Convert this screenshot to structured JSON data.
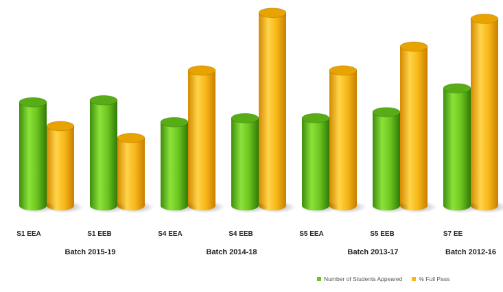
{
  "chart_data": {
    "type": "bar",
    "style": "3d-cylinder",
    "title": "",
    "xlabel": "",
    "ylabel": "",
    "ylim": [
      0,
      100
    ],
    "grid": false,
    "legend_position": "bottom-right",
    "categories": [
      "S1 EEA",
      "S1 EEB",
      "S4 EEA",
      "S4 EEB",
      "S5 EEA",
      "S5 EEB",
      "S7 EE"
    ],
    "groups": [
      {
        "label": "Batch 2015-19",
        "categories": [
          "S1 EEA",
          "S1 EEB"
        ]
      },
      {
        "label": "Batch 2014-18",
        "categories": [
          "S4 EEA",
          "S4 EEB"
        ]
      },
      {
        "label": "Batch 2013-17",
        "categories": [
          "S5 EEA",
          "S5 EEB"
        ]
      },
      {
        "label": "Batch 2012-16",
        "categories": [
          "S7 EE"
        ]
      }
    ],
    "series": [
      {
        "name": "Number of Students Appeared",
        "color": "#6cc41e",
        "values": [
          52,
          53,
          42,
          44,
          44,
          47,
          59
        ]
      },
      {
        "name": "% Full Pass",
        "color": "#f7b718",
        "values": [
          40,
          34,
          68,
          97,
          68,
          80,
          94
        ]
      }
    ]
  }
}
